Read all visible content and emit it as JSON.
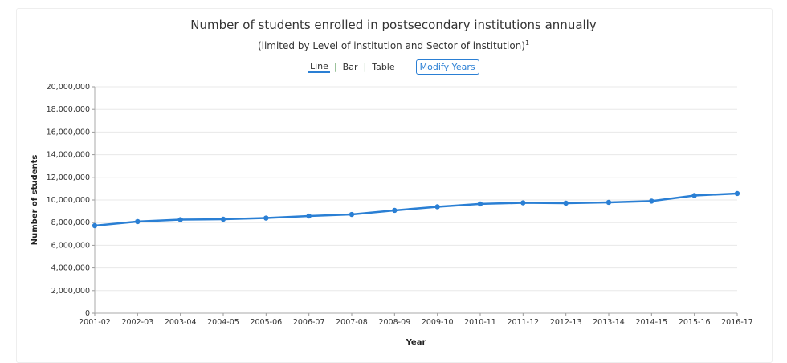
{
  "chart_data": {
    "type": "line",
    "title": "Number of students enrolled in postsecondary institutions annually",
    "subtitle": "(limited by Level of institution and Sector of institution)",
    "subtitle_footnote": "1",
    "xlabel": "Year",
    "ylabel": "Number of students",
    "ylim": [
      0,
      20000000
    ],
    "yticks": [
      "0",
      "2,000,000",
      "4,000,000",
      "6,000,000",
      "8,000,000",
      "10,000,000",
      "12,000,000",
      "14,000,000",
      "16,000,000",
      "18,000,000",
      "20,000,000"
    ],
    "categories": [
      "2001-02",
      "2002-03",
      "2003-04",
      "2004-05",
      "2005-06",
      "2006-07",
      "2007-08",
      "2008-09",
      "2009-10",
      "2010-11",
      "2011-12",
      "2012-13",
      "2013-14",
      "2014-15",
      "2015-16",
      "2016-17"
    ],
    "series": [
      {
        "name": "Number of students",
        "color": "#2a7fd4",
        "values": [
          7730000,
          8090000,
          8260000,
          8300000,
          8400000,
          8580000,
          8720000,
          9080000,
          9400000,
          9650000,
          9750000,
          9720000,
          9790000,
          9900000,
          10390000,
          10570000
        ]
      }
    ],
    "grid": true
  },
  "controls": {
    "tabs": [
      "Line",
      "Bar",
      "Table"
    ],
    "active": "Line",
    "modify_label": "Modify Years"
  }
}
